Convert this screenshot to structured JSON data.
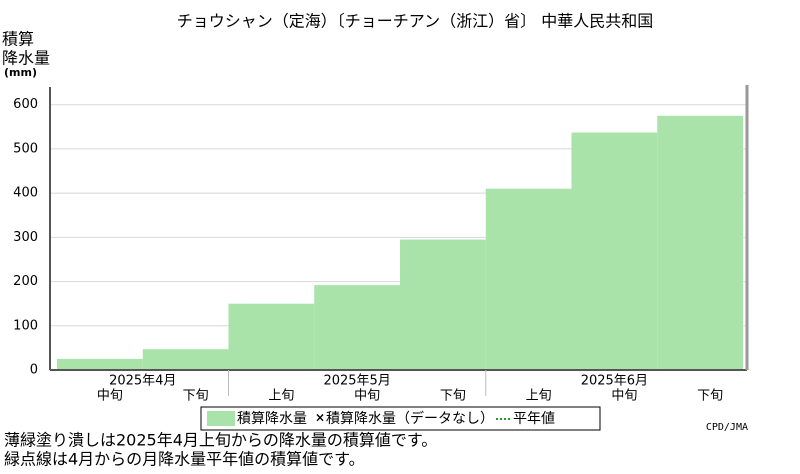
{
  "chart_data": {
    "type": "step-bar",
    "title": "チョウシャン（定海）〔チョーチアン（浙江）省〕 中華人民共和国",
    "y_label": [
      "積算",
      "降水量",
      "(mm)"
    ],
    "groups": [
      {
        "name": "2025年4月",
        "categories": [
          "中旬",
          "下旬"
        ]
      },
      {
        "name": "2025年5月",
        "categories": [
          "上旬",
          "中旬",
          "下旬"
        ]
      },
      {
        "name": "2025年6月",
        "categories": [
          "上旬",
          "中旬",
          "下旬"
        ]
      }
    ],
    "series": [
      {
        "name": "積算降水量",
        "color": "#aae3aa",
        "values": [
          25,
          47,
          150,
          192,
          295,
          410,
          537,
          575
        ]
      }
    ],
    "legend_extra": [
      {
        "name": "積算降水量（データなし）",
        "marker": "x"
      },
      {
        "name": "平年値",
        "line": "dotted"
      }
    ],
    "ylim": [
      0,
      640
    ],
    "yticks": [
      0,
      100,
      200,
      300,
      400,
      500,
      600
    ],
    "grid": true,
    "credit": "CPD/JMA",
    "notes": [
      "薄緑塗り潰しは2025年4月上旬からの降水量の積算値です。",
      "緑点線は4月からの月降水量平年値の積算値です。"
    ]
  }
}
